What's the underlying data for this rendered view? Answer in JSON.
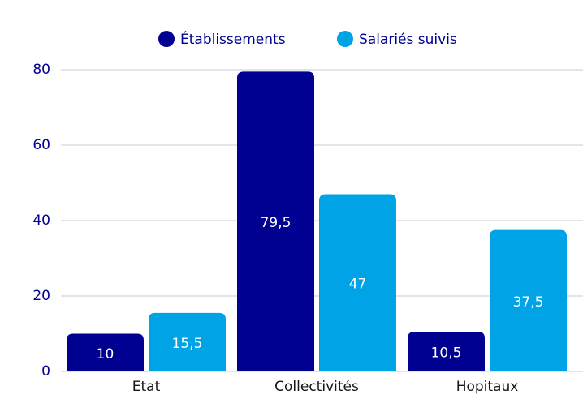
{
  "chart_data": {
    "type": "bar",
    "categories": [
      "Etat",
      "Collectivités",
      "Hopitaux"
    ],
    "series": [
      {
        "name": "Établissements",
        "color": "#000091",
        "values": [
          10,
          79.5,
          10.5
        ],
        "value_labels": [
          "10",
          "79,5",
          "10,5"
        ]
      },
      {
        "name": "Salariés suivis",
        "color": "#00a3e6",
        "values": [
          15.5,
          47,
          37.5
        ],
        "value_labels": [
          "15,5",
          "47",
          "37,5"
        ]
      }
    ],
    "ylim": [
      0,
      80
    ],
    "yticks": [
      0,
      20,
      40,
      60,
      80
    ],
    "grid": true,
    "legend": "top"
  }
}
